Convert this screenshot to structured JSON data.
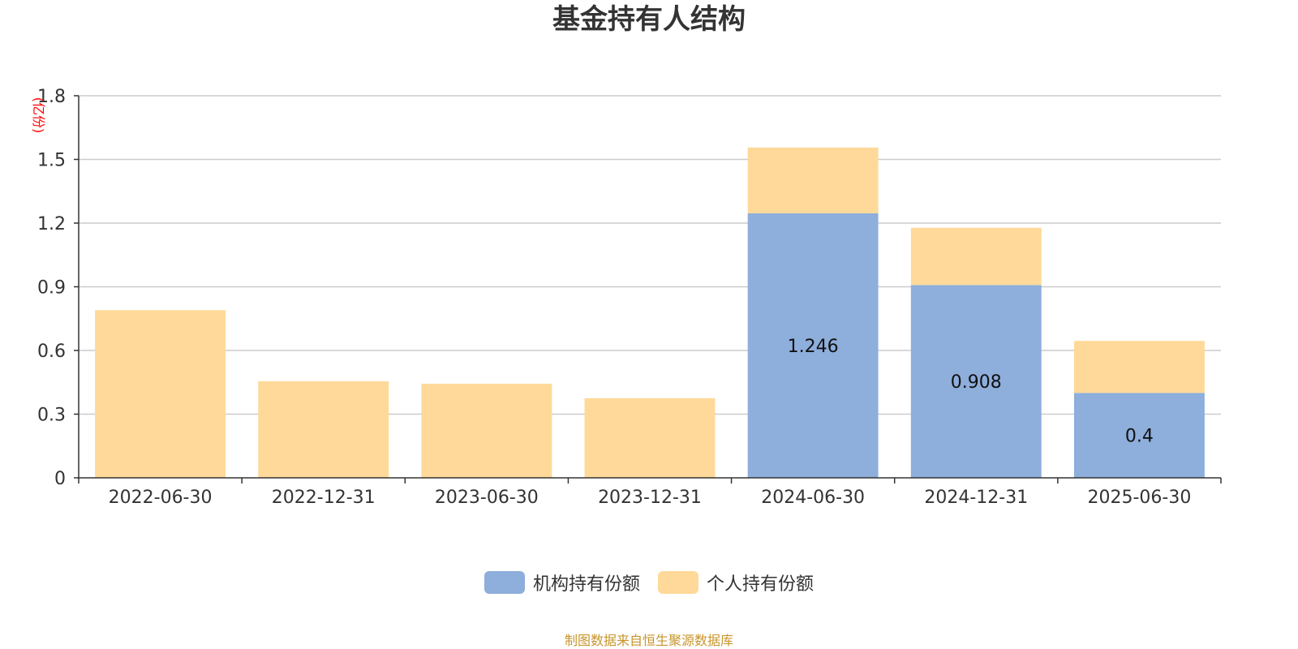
{
  "chart_data": {
    "type": "bar",
    "stacked": true,
    "title": "基金持有人结构",
    "ylabel": "(亿份)",
    "xlabel": "",
    "ylim": [
      0,
      1.8
    ],
    "yticks": [
      "0",
      "0.3",
      "0.6",
      "0.9",
      "1.2",
      "1.5",
      "1.8"
    ],
    "grid": true,
    "legend_position": "bottom-center",
    "categories": [
      "2022-06-30",
      "2022-12-31",
      "2023-06-30",
      "2023-12-31",
      "2024-06-30",
      "2024-12-31",
      "2025-06-30"
    ],
    "series": [
      {
        "name": "机构持有份额",
        "color": "#8eaedb",
        "values": [
          0,
          0,
          0,
          0,
          1.246,
          0.908,
          0.4
        ],
        "labels": [
          "",
          "",
          "",
          "",
          "1.246",
          "0.908",
          "0.4"
        ]
      },
      {
        "name": "个人持有份额",
        "color": "#ffd999",
        "values": [
          0.79,
          0.455,
          0.443,
          0.375,
          0.31,
          0.27,
          0.245
        ],
        "labels": [
          "",
          "",
          "",
          "",
          "",
          "",
          ""
        ]
      }
    ]
  },
  "source_note": "制图数据来自恒生聚源数据库",
  "colors": {
    "title": "#333333",
    "axis": "#333333",
    "grid": "#cccccc",
    "ylabel": "#ff0000",
    "source_note": "#c8952c"
  }
}
